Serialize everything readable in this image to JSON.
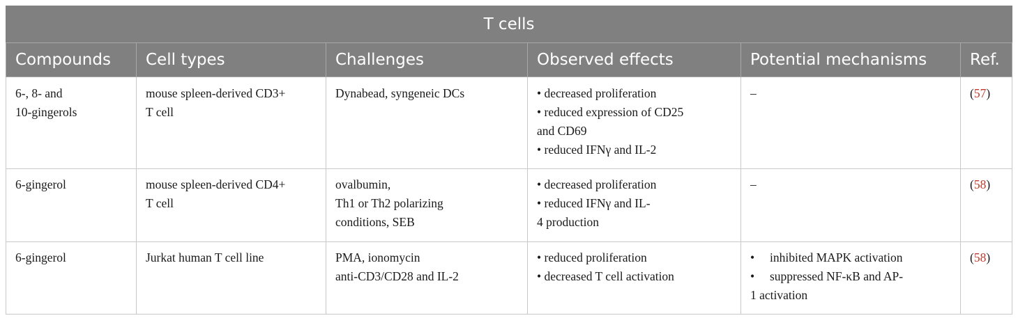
{
  "title": "T cells",
  "headers": [
    "Compounds",
    "Cell types",
    "Challenges",
    "Observed effects",
    "Potential mechanisms",
    "Ref."
  ],
  "rows": [
    {
      "compound": [
        "6-, 8- and",
        "10-gingerols"
      ],
      "cell_type": [
        "mouse spleen-derived CD3+",
        "T cell"
      ],
      "challenges": [
        "Dynabead, syngeneic DCs"
      ],
      "effects": [
        "decreased proliferation",
        "reduced expression of CD25",
        "and CD69",
        "reduced IFNγ and IL-2"
      ],
      "effect_bullets": [
        true,
        true,
        false,
        true
      ],
      "mechanisms": [
        "–"
      ],
      "ref": "57"
    },
    {
      "compound": [
        "6-gingerol"
      ],
      "cell_type": [
        "mouse spleen-derived CD4+",
        "T cell"
      ],
      "challenges": [
        "ovalbumin,",
        "Th1 or Th2 polarizing",
        "conditions, SEB"
      ],
      "effects": [
        "decreased proliferation",
        "reduced IFNγ and IL-",
        "4 production"
      ],
      "effect_bullets": [
        true,
        true,
        false
      ],
      "mechanisms": [
        "–"
      ],
      "ref": "58"
    },
    {
      "compound": [
        "6-gingerol"
      ],
      "cell_type": [
        "Jurkat human T cell line"
      ],
      "challenges": [
        "PMA, ionomycin",
        "anti-CD3/CD28 and IL-2"
      ],
      "effects": [
        "reduced proliferation",
        "decreased T cell activation"
      ],
      "effect_bullets": [
        true,
        true
      ],
      "mechanisms": [
        "inhibited MAPK activation",
        "suppressed NF-κB and AP-",
        "1 activation"
      ],
      "mechanism_bullets": [
        true,
        true,
        false
      ],
      "ref": "58"
    }
  ]
}
